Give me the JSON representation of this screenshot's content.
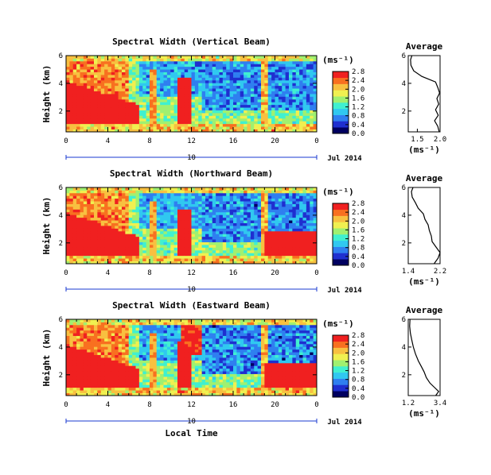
{
  "figure": {
    "xlabel": "Local Time",
    "date_label": "Jul 2014",
    "day_label": "10",
    "colorbar_unit": "(ms⁻¹)",
    "average_title": "Average"
  },
  "colormap": [
    "#000060",
    "#1f2fd0",
    "#2f7ff0",
    "#30c8f0",
    "#40f0d0",
    "#a0f070",
    "#f0f050",
    "#f8c040",
    "#f87020",
    "#f02020"
  ],
  "chart_data": [
    {
      "type": "heatmap",
      "title": "Spectral Width (Vertical Beam)",
      "ylabel": "Height (km)",
      "xlim": [
        0,
        24
      ],
      "ylim": [
        0.5,
        6
      ],
      "x_ticks": [
        "0",
        "4",
        "8",
        "12",
        "16",
        "20",
        "0"
      ],
      "y_ticks": [
        "2",
        "4",
        "6"
      ],
      "colorbar": {
        "range": [
          0.0,
          2.8
        ],
        "tick_labels": [
          "0.0",
          "0.4",
          "0.8",
          "1.2",
          "1.6",
          "2.0",
          "2.4",
          "2.8"
        ]
      },
      "average": {
        "xlim": [
          1.3,
          2.0
        ],
        "x_ticks": [
          "1.5",
          "2.0"
        ],
        "y_ticks": [
          "2",
          "4",
          "6"
        ],
        "xlabel": "(ms⁻¹)",
        "profile": [
          {
            "h": 0.5,
            "v": 1.98
          },
          {
            "h": 0.9,
            "v": 1.95
          },
          {
            "h": 1.3,
            "v": 1.88
          },
          {
            "h": 1.7,
            "v": 1.96
          },
          {
            "h": 2.1,
            "v": 1.9
          },
          {
            "h": 2.5,
            "v": 1.97
          },
          {
            "h": 2.9,
            "v": 1.93
          },
          {
            "h": 3.3,
            "v": 1.99
          },
          {
            "h": 3.7,
            "v": 1.95
          },
          {
            "h": 4.1,
            "v": 1.9
          },
          {
            "h": 4.5,
            "v": 1.6
          },
          {
            "h": 4.9,
            "v": 1.42
          },
          {
            "h": 5.3,
            "v": 1.36
          },
          {
            "h": 5.7,
            "v": 1.35
          },
          {
            "h": 6.0,
            "v": 1.38
          }
        ]
      }
    },
    {
      "type": "heatmap",
      "title": "Spectral Width (Northward Beam)",
      "ylabel": "Height (km)",
      "xlim": [
        0,
        24
      ],
      "ylim": [
        0.5,
        6
      ],
      "x_ticks": [
        "0",
        "4",
        "8",
        "12",
        "16",
        "20",
        "0"
      ],
      "y_ticks": [
        "2",
        "4",
        "6"
      ],
      "colorbar": {
        "range": [
          0.0,
          2.8
        ],
        "tick_labels": [
          "0.0",
          "0.4",
          "0.8",
          "1.2",
          "1.6",
          "2.0",
          "2.4",
          "2.8"
        ]
      },
      "average": {
        "xlim": [
          1.4,
          2.2
        ],
        "x_ticks": [
          "1.4",
          "2.2"
        ],
        "y_ticks": [
          "2",
          "4",
          "6"
        ],
        "xlabel": "(ms⁻¹)",
        "profile": [
          {
            "h": 0.5,
            "v": 2.05
          },
          {
            "h": 0.9,
            "v": 2.15
          },
          {
            "h": 1.3,
            "v": 2.2
          },
          {
            "h": 1.7,
            "v": 2.1
          },
          {
            "h": 2.1,
            "v": 2.0
          },
          {
            "h": 2.5,
            "v": 1.98
          },
          {
            "h": 2.9,
            "v": 1.93
          },
          {
            "h": 3.3,
            "v": 1.9
          },
          {
            "h": 3.7,
            "v": 1.82
          },
          {
            "h": 4.1,
            "v": 1.78
          },
          {
            "h": 4.5,
            "v": 1.65
          },
          {
            "h": 4.9,
            "v": 1.58
          },
          {
            "h": 5.3,
            "v": 1.5
          },
          {
            "h": 5.7,
            "v": 1.48
          },
          {
            "h": 6.0,
            "v": 1.52
          }
        ]
      }
    },
    {
      "type": "heatmap",
      "title": "Spectral Width (Eastward Beam)",
      "ylabel": "Height (km)",
      "xlim": [
        0,
        24
      ],
      "ylim": [
        0.5,
        6
      ],
      "x_ticks": [
        "0",
        "4",
        "8",
        "12",
        "16",
        "20",
        "0"
      ],
      "y_ticks": [
        "2",
        "4",
        "6"
      ],
      "colorbar": {
        "range": [
          0.0,
          2.8
        ],
        "tick_labels": [
          "0.0",
          "0.4",
          "0.8",
          "1.2",
          "1.6",
          "2.0",
          "2.4",
          "2.8"
        ]
      },
      "average": {
        "xlim": [
          1.2,
          3.4
        ],
        "x_ticks": [
          "1.2",
          "3.4"
        ],
        "y_ticks": [
          "2",
          "4",
          "6"
        ],
        "xlabel": "(ms⁻¹)",
        "profile": [
          {
            "h": 0.5,
            "v": 3.1
          },
          {
            "h": 0.8,
            "v": 3.3
          },
          {
            "h": 1.1,
            "v": 3.0
          },
          {
            "h": 1.4,
            "v": 2.7
          },
          {
            "h": 1.8,
            "v": 2.45
          },
          {
            "h": 2.2,
            "v": 2.3
          },
          {
            "h": 2.6,
            "v": 2.1
          },
          {
            "h": 3.0,
            "v": 1.9
          },
          {
            "h": 3.5,
            "v": 1.7
          },
          {
            "h": 4.0,
            "v": 1.55
          },
          {
            "h": 4.5,
            "v": 1.45
          },
          {
            "h": 5.0,
            "v": 1.35
          },
          {
            "h": 5.5,
            "v": 1.3
          },
          {
            "h": 6.0,
            "v": 1.32
          }
        ]
      }
    }
  ]
}
